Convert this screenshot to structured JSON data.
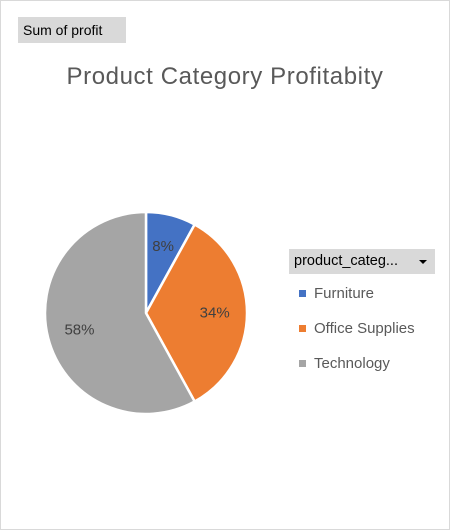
{
  "field_button": {
    "label": "Sum of profit"
  },
  "legend": {
    "field_label": "product_categ...",
    "dropdown_icon": "chevron-down-icon"
  },
  "chart_data": {
    "type": "pie",
    "title": "Product Category Profitabity",
    "categories": [
      "Furniture",
      "Office Supplies",
      "Technology"
    ],
    "values": [
      8,
      34,
      58
    ],
    "labels": [
      "8%",
      "34%",
      "58%"
    ],
    "colors": [
      "#4472c4",
      "#ed7d31",
      "#a5a5a5"
    ],
    "start_angle_deg": 0,
    "legend_position": "right"
  }
}
